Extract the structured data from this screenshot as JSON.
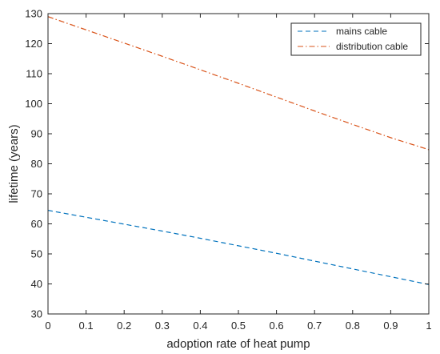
{
  "chart_data": {
    "type": "line",
    "title": "",
    "xlabel": "adoption rate of heat pump",
    "ylabel": "lifetime (years)",
    "xlim": [
      0,
      1
    ],
    "ylim": [
      30,
      130
    ],
    "xticks": [
      "0",
      "0.1",
      "0.2",
      "0.3",
      "0.4",
      "0.5",
      "0.6",
      "0.7",
      "0.8",
      "0.9",
      "1"
    ],
    "yticks": [
      "30",
      "40",
      "50",
      "60",
      "70",
      "80",
      "90",
      "100",
      "110",
      "120",
      "130"
    ],
    "grid": false,
    "legend_position": "top-right",
    "series": [
      {
        "name": "mains cable",
        "color": "#0072bd",
        "line_style": "dashed",
        "x": [
          0,
          0.1,
          0.2,
          0.3,
          0.4,
          0.5,
          0.6,
          0.7,
          0.8,
          0.9,
          1
        ],
        "y": [
          64.5,
          62.2,
          59.9,
          57.6,
          55.2,
          52.7,
          50.2,
          47.6,
          45.0,
          42.4,
          39.8
        ]
      },
      {
        "name": "distribution cable",
        "color": "#d95319",
        "line_style": "dash-dot",
        "x": [
          0,
          0.1,
          0.2,
          0.3,
          0.4,
          0.5,
          0.6,
          0.7,
          0.8,
          0.9,
          1
        ],
        "y": [
          129.0,
          124.6,
          120.2,
          115.8,
          111.3,
          106.8,
          102.2,
          97.6,
          93.1,
          88.7,
          84.7
        ]
      }
    ]
  }
}
